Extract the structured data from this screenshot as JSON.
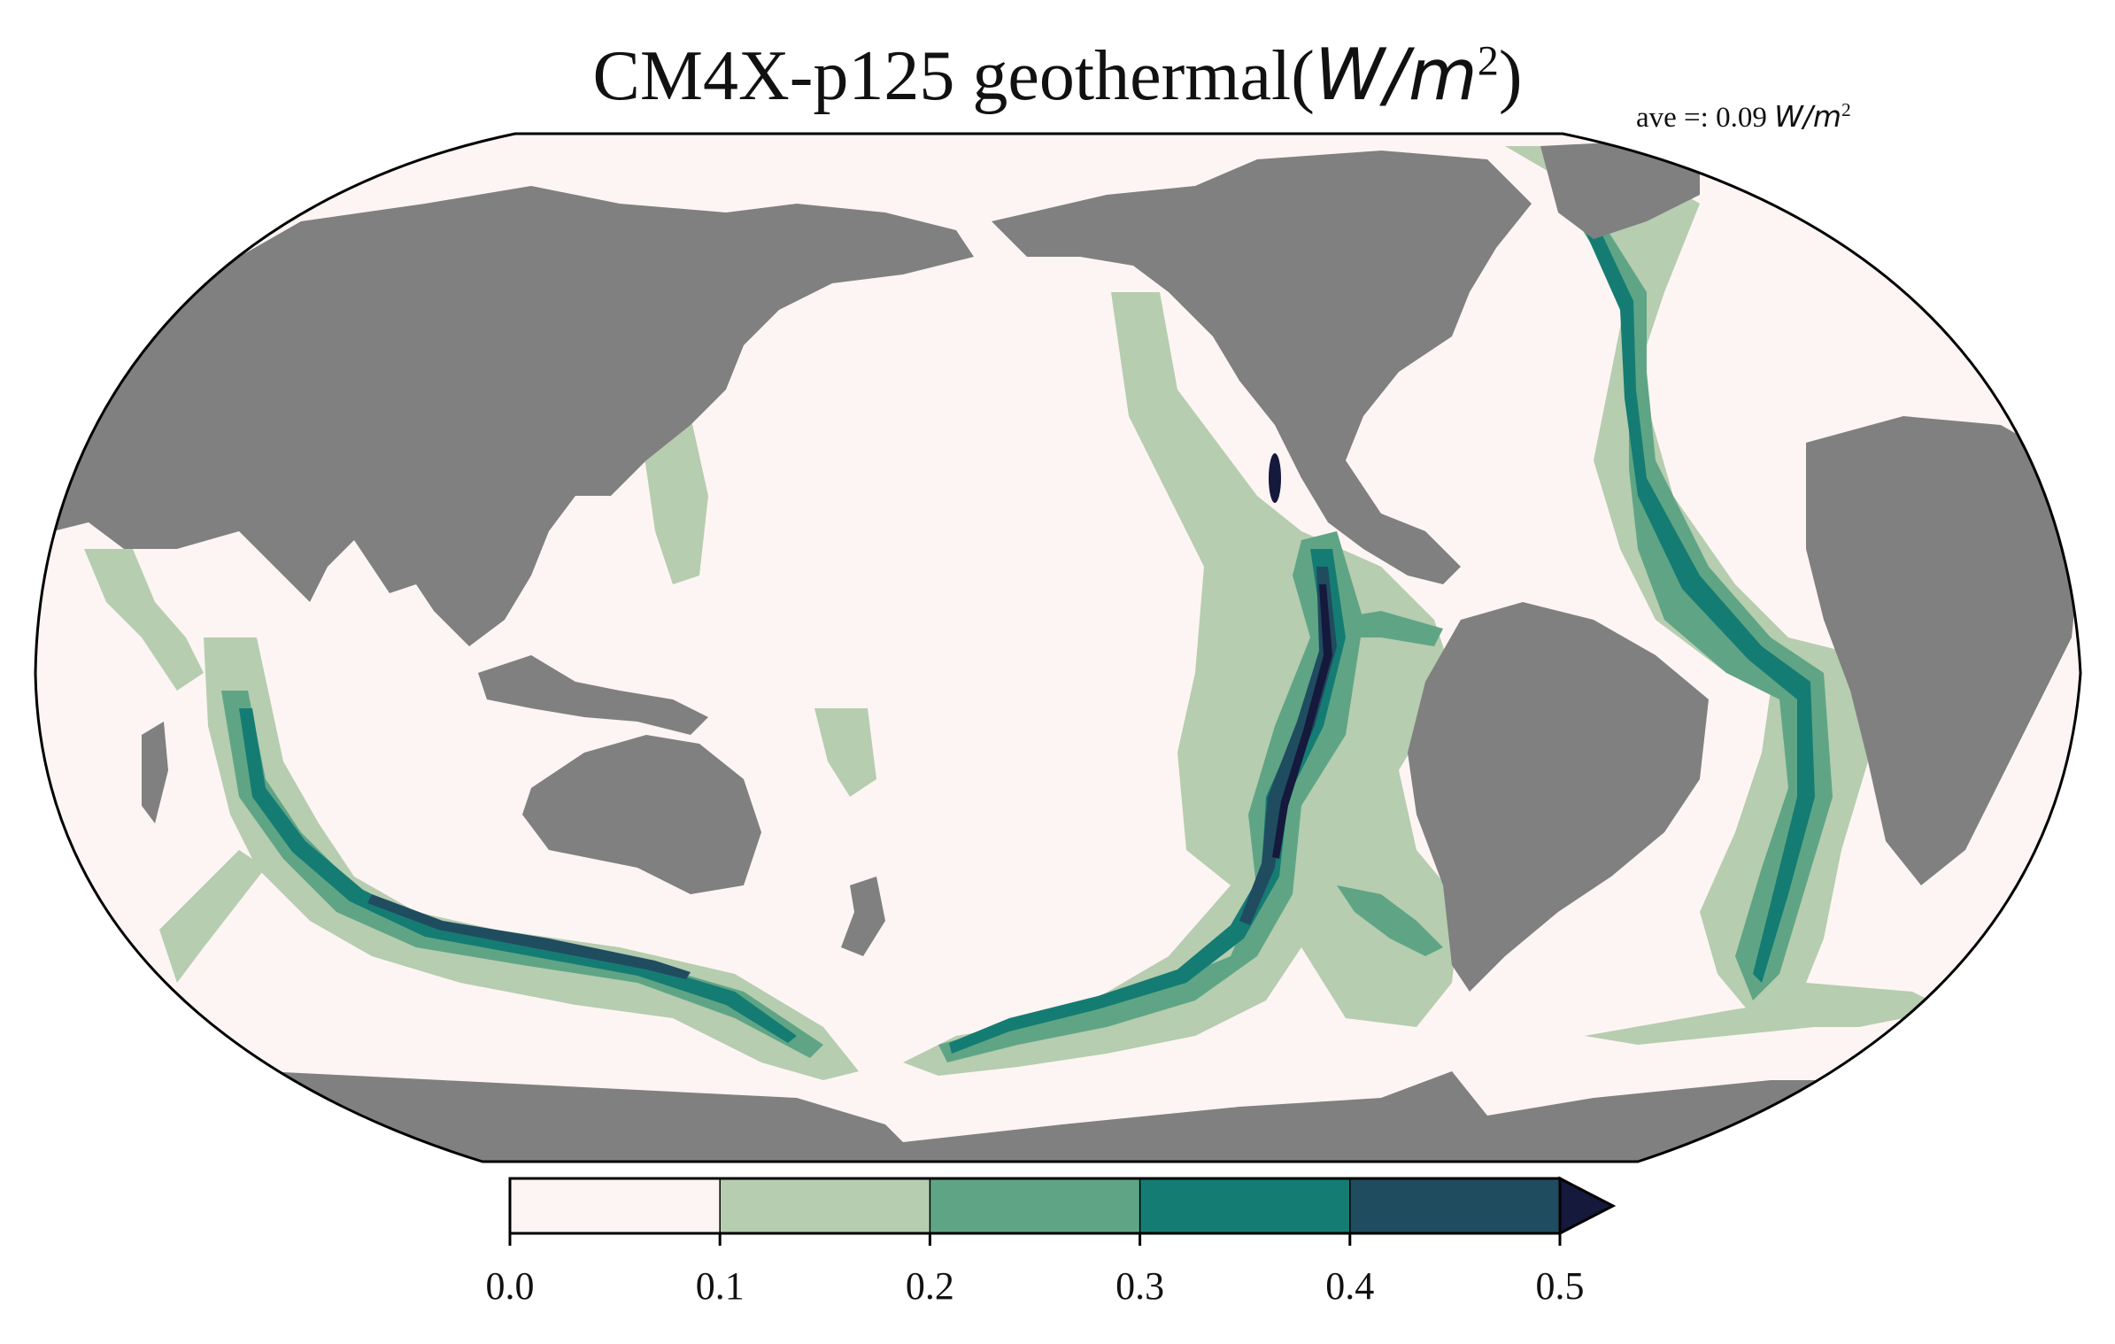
{
  "title": {
    "main": "CM4X-p125 geothermal(",
    "unit": "W/m",
    "sup": "2",
    "close": ")"
  },
  "annotation": {
    "prefix": "ave =: 0.09 ",
    "unit": "W/m",
    "sup": "2"
  },
  "colors": {
    "ocean_0": "#fdf5f3",
    "level_1": "#b6cdb0",
    "level_2": "#5fa585",
    "level_3": "#157c73",
    "level_4": "#204c60",
    "extend": "#15193c",
    "land": "#808080",
    "outline": "#000000"
  },
  "colorbar": {
    "levels": [
      0.0,
      0.1,
      0.2,
      0.3,
      0.4,
      0.5
    ],
    "tick_labels": [
      "0.0",
      "0.1",
      "0.2",
      "0.3",
      "0.4",
      "0.5"
    ],
    "extend": "max"
  }
}
